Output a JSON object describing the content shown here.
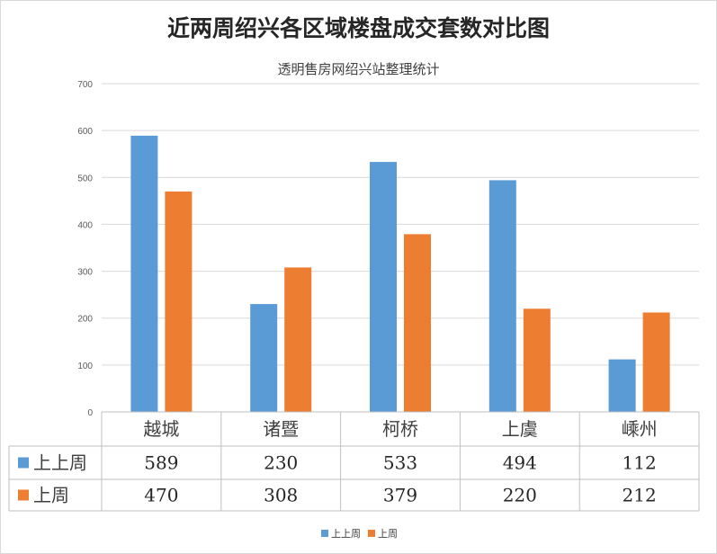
{
  "chart_data": {
    "type": "bar",
    "title": "近两周绍兴各区域楼盘成交套数对比图",
    "subtitle": "透明售房网绍兴站整理统计",
    "categories": [
      "越城",
      "诸暨",
      "柯桥",
      "上虞",
      "嵊州"
    ],
    "series": [
      {
        "name": "上上周",
        "values": [
          589,
          230,
          533,
          494,
          112
        ],
        "color": "#5b9bd5"
      },
      {
        "name": "上周",
        "values": [
          470,
          308,
          379,
          220,
          212
        ],
        "color": "#ed7d31"
      }
    ],
    "yticks": [
      "0",
      "100",
      "200",
      "300",
      "400",
      "500",
      "600",
      "700"
    ],
    "ylim": [
      0,
      700
    ],
    "grid": true,
    "data_table": true,
    "legend_position": "bottom"
  }
}
